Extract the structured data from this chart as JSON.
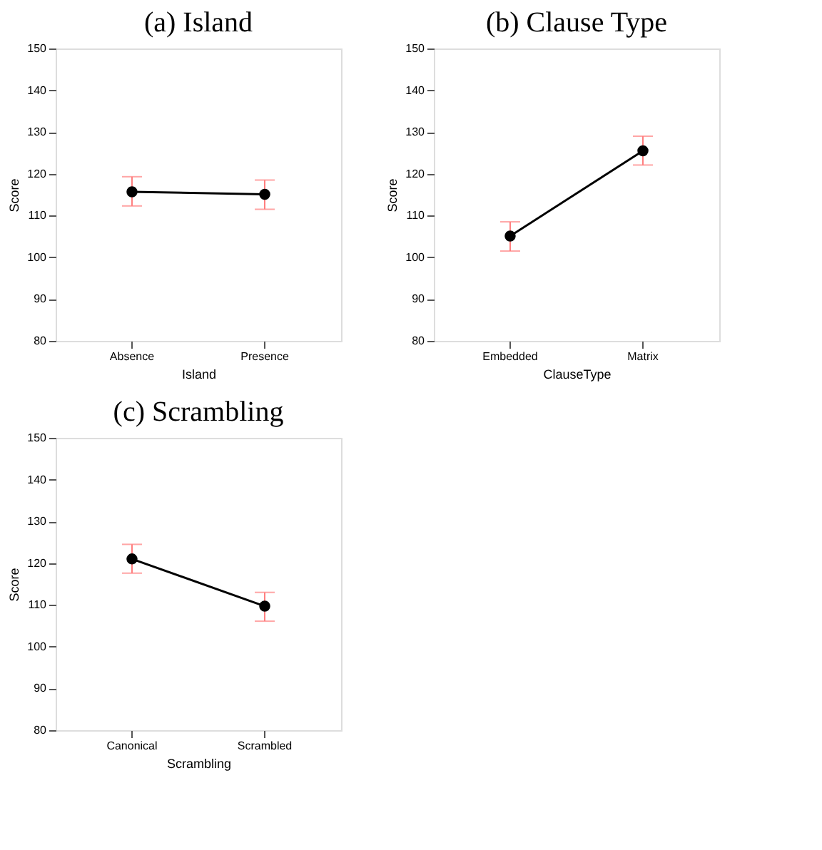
{
  "chart_data": [
    {
      "type": "line",
      "title": "(a) Island",
      "xlabel": "Island",
      "ylabel": "Score",
      "categories": [
        "Absence",
        "Presence"
      ],
      "series": [
        {
          "color": "#000000",
          "values": [
            115.7,
            115.1
          ],
          "errors": [
            [
              112.3,
              119.3
            ],
            [
              111.5,
              118.5
            ]
          ]
        }
      ],
      "ylim": [
        80,
        150
      ],
      "yticks": [
        80,
        90,
        100,
        110,
        120,
        130,
        140,
        150
      ],
      "grid": false,
      "marker": "circle"
    },
    {
      "type": "line",
      "title": "(b) Clause Type",
      "xlabel": "ClauseType",
      "ylabel": "Score",
      "categories": [
        "Embedded",
        "Matrix"
      ],
      "series": [
        {
          "color": "#000000",
          "values": [
            105.1,
            125.5
          ],
          "errors": [
            [
              101.5,
              108.5
            ],
            [
              122.1,
              129.0
            ]
          ]
        }
      ],
      "ylim": [
        80,
        150
      ],
      "yticks": [
        80,
        90,
        100,
        110,
        120,
        130,
        140,
        150
      ],
      "grid": false,
      "marker": "circle"
    },
    {
      "type": "line",
      "title": "(c) Scrambling",
      "xlabel": "Scrambling",
      "ylabel": "Score",
      "categories": [
        "Canonical",
        "Scrambled"
      ],
      "series": [
        {
          "color": "#000000",
          "values": [
            121.0,
            109.7
          ],
          "errors": [
            [
              117.6,
              124.5
            ],
            [
              106.1,
              113.0
            ]
          ]
        }
      ],
      "ylim": [
        80,
        150
      ],
      "yticks": [
        80,
        90,
        100,
        110,
        120,
        130,
        140,
        150
      ],
      "grid": false,
      "marker": "circle"
    }
  ]
}
